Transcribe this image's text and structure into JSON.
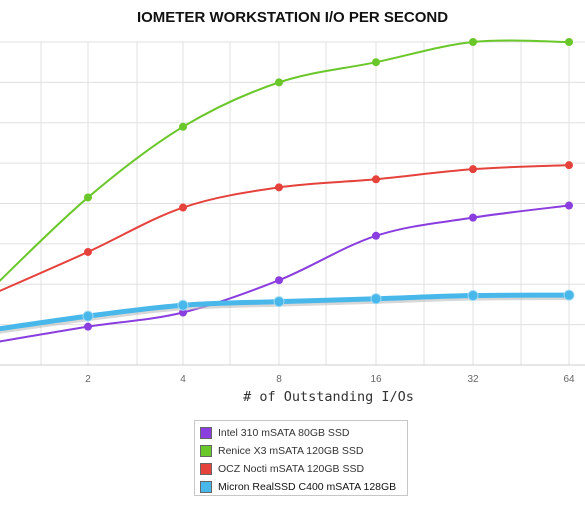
{
  "chart_data": {
    "type": "line",
    "title": "IOMETER WORKSTATION I/O PER SECOND",
    "xlabel": "# of Outstanding I/Os",
    "ylabel": "",
    "x": [
      1,
      2,
      4,
      8,
      16,
      32,
      64
    ],
    "x_tick_labels": [
      "2",
      "4",
      "8",
      "16",
      "32",
      "64"
    ],
    "ylim": [
      0,
      8
    ],
    "grid": true,
    "legend_position": "bottom-center",
    "series": [
      {
        "name": "Intel 310 mSATA 80GB SSD",
        "color": "#8a3ee0",
        "values": [
          0.55,
          0.95,
          1.3,
          2.1,
          3.2,
          3.65,
          3.95
        ]
      },
      {
        "name": "Renice X3 mSATA 120GB SSD",
        "color": "#6ac72a",
        "values": [
          1.9,
          4.15,
          5.9,
          7.0,
          7.5,
          8.0,
          8.0
        ]
      },
      {
        "name": "OCZ Nocti mSATA 120GB SSD",
        "color": "#e5423c",
        "values": [
          1.75,
          2.8,
          3.9,
          4.4,
          4.6,
          4.85,
          4.95
        ]
      },
      {
        "name": "Micron RealSSD C400 mSATA 128GB",
        "color": "#48b7ea",
        "values": [
          0.87,
          1.21,
          1.48,
          1.57,
          1.64,
          1.72,
          1.73
        ]
      }
    ]
  }
}
